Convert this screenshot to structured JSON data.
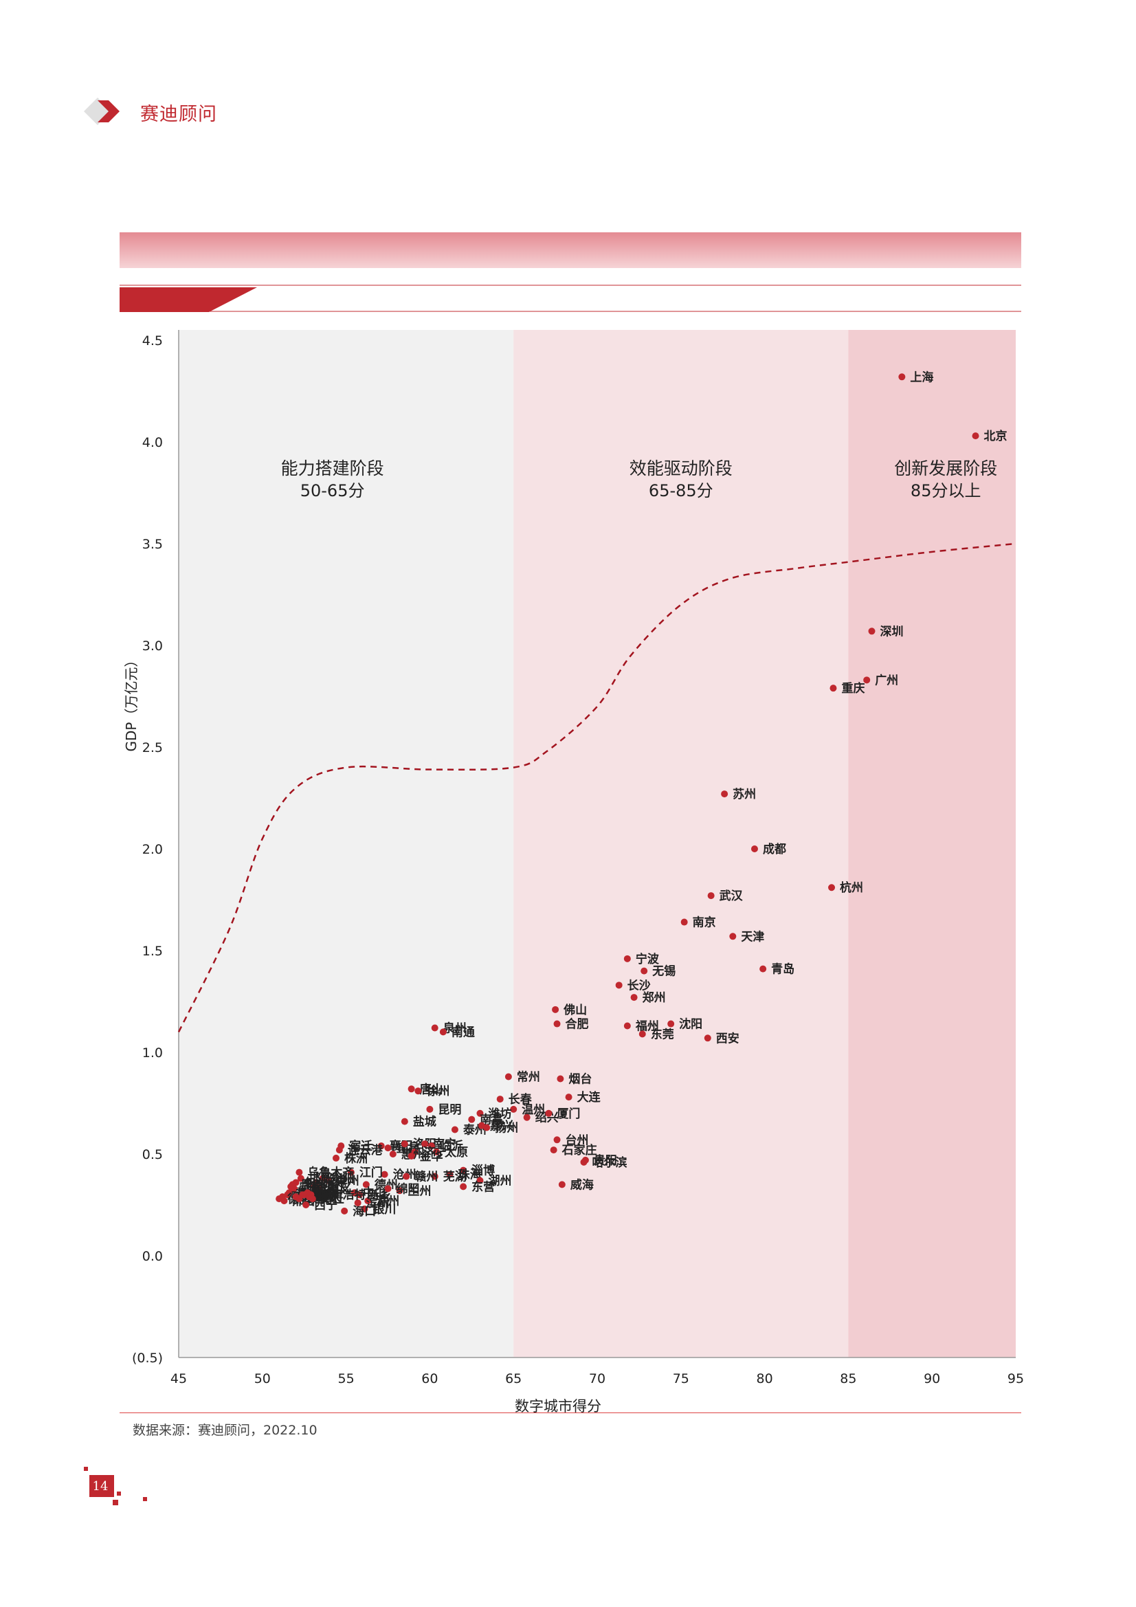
{
  "header": {
    "brand_name": "赛迪顾问",
    "brand_color": "#c0282f"
  },
  "page_number": "14",
  "source_note": "数据来源：赛迪顾问，2022.10",
  "chart_data": {
    "type": "scatter",
    "xlabel": "数字城市得分",
    "ylabel": "GDP（万亿元）",
    "xlim": [
      45,
      95
    ],
    "ylim": [
      -0.5,
      4.5
    ],
    "xticks": [
      45,
      50,
      55,
      60,
      65,
      70,
      75,
      80,
      85,
      90,
      95
    ],
    "yticks": [
      -0.5,
      0,
      0.5,
      1.0,
      1.5,
      2.0,
      2.5,
      3.0,
      3.5,
      4.0,
      4.5
    ],
    "ytick_labels": [
      "(0.5)",
      "0.0",
      "0.5",
      "1.0",
      "1.5",
      "2.0",
      "2.5",
      "3.0",
      "3.5",
      "4.0",
      "4.5"
    ],
    "grid": false,
    "point_color": "#c0282f",
    "zones": [
      {
        "name": "能力搭建阶段",
        "range_label": "50-65分",
        "x_from": 45,
        "x_to": 65,
        "color": "#f1f1f1"
      },
      {
        "name": "效能驱动阶段",
        "range_label": "65-85分",
        "x_from": 65,
        "x_to": 85,
        "color": "#f6e2e4"
      },
      {
        "name": "创新发展阶段",
        "range_label": "85分以上",
        "x_from": 85,
        "x_to": 95,
        "color": "#f2cdd1"
      }
    ],
    "trend_curve": {
      "style": "dashed",
      "color": "#a3141f",
      "points": [
        [
          45,
          1.1
        ],
        [
          48,
          1.6
        ],
        [
          50,
          2.05
        ],
        [
          52,
          2.3
        ],
        [
          55,
          2.4
        ],
        [
          60,
          2.39
        ],
        [
          65,
          2.4
        ],
        [
          67,
          2.48
        ],
        [
          70,
          2.7
        ],
        [
          72,
          2.95
        ],
        [
          75,
          3.2
        ],
        [
          78,
          3.33
        ],
        [
          82,
          3.38
        ],
        [
          85,
          3.41
        ],
        [
          90,
          3.46
        ],
        [
          95,
          3.5
        ]
      ]
    },
    "points": [
      {
        "name": "上海",
        "x": 88.2,
        "y": 4.32
      },
      {
        "name": "北京",
        "x": 92.6,
        "y": 4.03
      },
      {
        "name": "深圳",
        "x": 86.4,
        "y": 3.07
      },
      {
        "name": "广州",
        "x": 86.1,
        "y": 2.83
      },
      {
        "name": "重庆",
        "x": 84.1,
        "y": 2.79
      },
      {
        "name": "苏州",
        "x": 77.6,
        "y": 2.27
      },
      {
        "name": "成都",
        "x": 79.4,
        "y": 2.0
      },
      {
        "name": "杭州",
        "x": 84.0,
        "y": 1.81
      },
      {
        "name": "武汉",
        "x": 76.8,
        "y": 1.77
      },
      {
        "name": "南京",
        "x": 75.2,
        "y": 1.64
      },
      {
        "name": "天津",
        "x": 78.1,
        "y": 1.57
      },
      {
        "name": "宁波",
        "x": 71.8,
        "y": 1.46
      },
      {
        "name": "无锡",
        "x": 72.8,
        "y": 1.4
      },
      {
        "name": "青岛",
        "x": 79.9,
        "y": 1.41
      },
      {
        "name": "长沙",
        "x": 71.3,
        "y": 1.33
      },
      {
        "name": "郑州",
        "x": 72.2,
        "y": 1.27
      },
      {
        "name": "佛山",
        "x": 67.5,
        "y": 1.21
      },
      {
        "name": "合肥",
        "x": 67.6,
        "y": 1.14
      },
      {
        "name": "福州",
        "x": 71.8,
        "y": 1.13
      },
      {
        "name": "沈阳",
        "x": 74.4,
        "y": 1.14
      },
      {
        "name": "东莞",
        "x": 72.7,
        "y": 1.09
      },
      {
        "name": "西安",
        "x": 76.6,
        "y": 1.07
      },
      {
        "name": "泉州",
        "x": 60.3,
        "y": 1.12
      },
      {
        "name": "南通",
        "x": 60.8,
        "y": 1.1
      },
      {
        "name": "常州",
        "x": 64.7,
        "y": 0.88
      },
      {
        "name": "烟台",
        "x": 67.8,
        "y": 0.87
      },
      {
        "name": "唐山",
        "x": 58.9,
        "y": 0.82
      },
      {
        "name": "徐州",
        "x": 59.3,
        "y": 0.81
      },
      {
        "name": "长春",
        "x": 64.2,
        "y": 0.77
      },
      {
        "name": "大连",
        "x": 68.3,
        "y": 0.78
      },
      {
        "name": "温州",
        "x": 65.0,
        "y": 0.72
      },
      {
        "name": "潍坊",
        "x": 63.0,
        "y": 0.7
      },
      {
        "name": "绍兴",
        "x": 65.8,
        "y": 0.68
      },
      {
        "name": "厦门",
        "x": 67.1,
        "y": 0.7
      },
      {
        "name": "昆明",
        "x": 60.0,
        "y": 0.72
      },
      {
        "name": "南昌",
        "x": 62.5,
        "y": 0.67
      },
      {
        "name": "盐城",
        "x": 58.5,
        "y": 0.66
      },
      {
        "name": "泰州",
        "x": 61.5,
        "y": 0.62
      },
      {
        "name": "嘉兴",
        "x": 63.1,
        "y": 0.64
      },
      {
        "name": "扬州",
        "x": 63.4,
        "y": 0.63
      },
      {
        "name": "台州",
        "x": 67.6,
        "y": 0.57
      },
      {
        "name": "石家庄",
        "x": 67.4,
        "y": 0.52
      },
      {
        "name": "襄阳",
        "x": 57.1,
        "y": 0.54
      },
      {
        "name": "宜昌",
        "x": 57.5,
        "y": 0.53
      },
      {
        "name": "洛阳",
        "x": 58.5,
        "y": 0.55
      },
      {
        "name": "南宁",
        "x": 59.7,
        "y": 0.55
      },
      {
        "name": "临沂",
        "x": 60.1,
        "y": 0.54
      },
      {
        "name": "济宁",
        "x": 59.1,
        "y": 0.51
      },
      {
        "name": "惠州",
        "x": 57.8,
        "y": 0.5
      },
      {
        "name": "太原",
        "x": 60.4,
        "y": 0.51
      },
      {
        "name": "金华",
        "x": 58.9,
        "y": 0.49
      },
      {
        "name": "哈尔滨",
        "x": 69.2,
        "y": 0.46
      },
      {
        "name": "贵阳",
        "x": 69.3,
        "y": 0.47
      },
      {
        "name": "淄博",
        "x": 62.0,
        "y": 0.42
      },
      {
        "name": "珠海",
        "x": 61.2,
        "y": 0.4
      },
      {
        "name": "湖州",
        "x": 63.0,
        "y": 0.37
      },
      {
        "name": "威海",
        "x": 67.9,
        "y": 0.35
      },
      {
        "name": "芜湖",
        "x": 60.3,
        "y": 0.39
      },
      {
        "name": "东营",
        "x": 62.0,
        "y": 0.34
      },
      {
        "name": "沧州",
        "x": 57.3,
        "y": 0.4
      },
      {
        "name": "赣州",
        "x": 58.6,
        "y": 0.39
      },
      {
        "name": "江门",
        "x": 55.3,
        "y": 0.41
      },
      {
        "name": "德州",
        "x": 56.2,
        "y": 0.35
      },
      {
        "name": "兰州",
        "x": 58.2,
        "y": 0.32
      },
      {
        "name": "新乡",
        "x": 55.8,
        "y": 0.3
      },
      {
        "name": "绵阳",
        "x": 57.5,
        "y": 0.33
      },
      {
        "name": "银川",
        "x": 56.1,
        "y": 0.23
      },
      {
        "name": "海口",
        "x": 54.9,
        "y": 0.22
      },
      {
        "name": "株洲",
        "x": 54.4,
        "y": 0.48
      },
      {
        "name": "滁州",
        "x": 56.3,
        "y": 0.27
      },
      {
        "name": "滨州",
        "x": 55.7,
        "y": 0.26
      },
      {
        "name": "中山",
        "x": 55.5,
        "y": 0.31
      },
      {
        "name": "漳州",
        "x": 53.9,
        "y": 0.37
      },
      {
        "name": "连云港",
        "x": 54.6,
        "y": 0.52
      },
      {
        "name": "宿迁",
        "x": 54.7,
        "y": 0.54
      },
      {
        "name": "衡阳",
        "x": 53.6,
        "y": 0.38
      },
      {
        "name": "保定",
        "x": 53.2,
        "y": 0.36
      },
      {
        "name": "镇江",
        "x": 53.1,
        "y": 0.34
      },
      {
        "name": "遵义",
        "x": 53.4,
        "y": 0.33
      },
      {
        "name": "乌鲁木齐",
        "x": 52.2,
        "y": 0.41
      },
      {
        "name": "邯郸",
        "x": 52.3,
        "y": 0.38
      },
      {
        "name": "包头",
        "x": 52.0,
        "y": 0.36
      },
      {
        "name": "周口",
        "x": 51.8,
        "y": 0.35
      },
      {
        "name": "上饶",
        "x": 51.9,
        "y": 0.33
      },
      {
        "name": "宁德",
        "x": 51.7,
        "y": 0.34
      },
      {
        "name": "荆州",
        "x": 51.6,
        "y": 0.31
      },
      {
        "name": "莆田",
        "x": 51.5,
        "y": 0.3
      },
      {
        "name": "平顶山",
        "x": 51.2,
        "y": 0.29
      },
      {
        "name": "德阳",
        "x": 51.0,
        "y": 0.28
      },
      {
        "name": "邢台",
        "x": 51.3,
        "y": 0.27
      },
      {
        "name": "湘潭",
        "x": 52.0,
        "y": 0.29
      },
      {
        "name": "泰安",
        "x": 52.2,
        "y": 0.28
      },
      {
        "name": "大庆",
        "x": 52.4,
        "y": 0.3
      },
      {
        "name": "阜阳",
        "x": 52.7,
        "y": 0.31
      },
      {
        "name": "宜春",
        "x": 52.5,
        "y": 0.3
      },
      {
        "name": "西宁",
        "x": 52.6,
        "y": 0.25
      },
      {
        "name": "安庆",
        "x": 52.8,
        "y": 0.29
      },
      {
        "name": "呼和浩特",
        "x": 52.9,
        "y": 0.3
      },
      {
        "name": "南丘",
        "x": 53.0,
        "y": 0.28
      }
    ]
  }
}
